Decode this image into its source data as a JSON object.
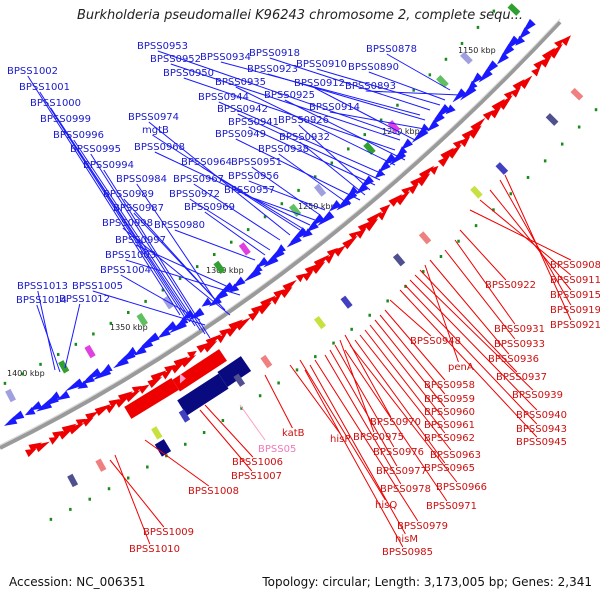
{
  "title": "Burkholderia pseudomallei K96243 chromosome 2, complete sequ...",
  "footer": {
    "accession": "Accession: NC_006351",
    "info": "Topology: circular; Length: 3,173,005 bp; Genes: 2,341"
  },
  "ticks": [
    "1150 kbp",
    "1200 kbp",
    "1250 kbp",
    "1300 kbp",
    "1350 kbp",
    "1400 kbp"
  ],
  "colors": {
    "forward": "#1a1aff",
    "reverse": "#ee0000",
    "rna": "#ff9ec9",
    "backbone": "#888888"
  },
  "blue_labels": [
    "BPSS0953",
    "BPSS0952",
    "BPSS0950",
    "BPSS0934",
    "BPSS0918",
    "BPSS0923",
    "BPSS0910",
    "BPSS0878",
    "BPSS0890",
    "BPSS0893",
    "BPSS0912",
    "BPSS0914",
    "BPSS0925",
    "BPSS0935",
    "BPSS0944",
    "BPSS0942",
    "BPSS0941",
    "BPSS0926",
    "BPSS0932",
    "BPSS0949",
    "BPSS0938",
    "BPSS0974",
    "mgtB",
    "BPSS0968",
    "BPSS0964",
    "BPSS0951",
    "BPSS0956",
    "BPSS0967",
    "BPSS0957",
    "BPSS0972",
    "BPSS0969",
    "BPSS0980",
    "BPSS1002",
    "BPSS1001",
    "BPSS1000",
    "BPSS0999",
    "BPSS0996",
    "BPSS0995",
    "BPSS0994",
    "BPSS0984",
    "BPSS0989",
    "BPSS0987",
    "BPSS0998",
    "BPSS0997",
    "BPSS1003",
    "BPSS1004",
    "BPSS1005",
    "BPSS1013",
    "BPSS1014",
    "BPSS1012"
  ],
  "red_labels": [
    "BPSS0922",
    "BPSS0908",
    "BPSS0911",
    "BPSS0915",
    "BPSS0931",
    "BPSS0919",
    "BPSS0933",
    "BPSS0921",
    "BPSS0948",
    "BPSS0936",
    "penA",
    "BPSS0937",
    "BPSS0958",
    "BPSS0939",
    "BPSS0959",
    "BPSS0960",
    "BPSS0940",
    "BPSS0943",
    "BPSS0961",
    "BPSS0945",
    "BPSS0970",
    "BPSS0962",
    "katB",
    "hisP",
    "BPSS0975",
    "BPSS0963",
    "BPSS0976",
    "BPSS0965",
    "BPSS0977",
    "BPSS0966",
    "BPSS0978",
    "hisQ",
    "BPSS0971",
    "BPSS1006",
    "BPSS1007",
    "BPSS1008",
    "BPSS0979",
    "hisM",
    "BPSS0985",
    "BPSS1009",
    "BPSS1010"
  ],
  "rna_labels": [
    "BPSS05"
  ]
}
